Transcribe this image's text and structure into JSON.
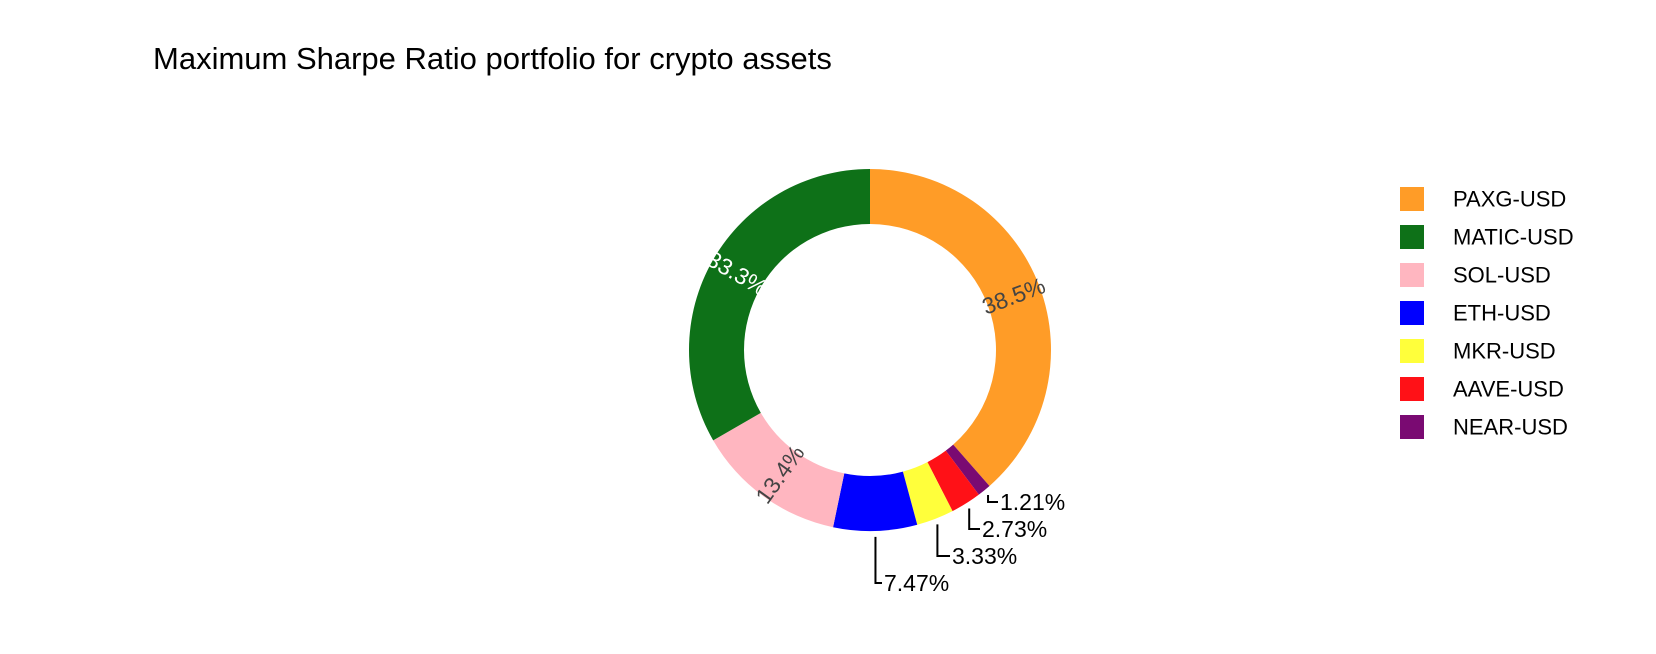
{
  "chart_data": {
    "type": "pie",
    "hole": true,
    "title": "Maximum Sharpe Ratio portfolio for crypto assets",
    "legend_position": "right",
    "slices": [
      {
        "label": "PAXG-USD",
        "value": 38.5,
        "value_label": "38.5%",
        "color": "#ff9c27",
        "label_position": "inside",
        "text_color": "#444444"
      },
      {
        "label": "NEAR-USD",
        "value": 1.21,
        "value_label": "1.21%",
        "color": "#7a0a72",
        "label_position": "outside",
        "text_color": "#000000"
      },
      {
        "label": "AAVE-USD",
        "value": 2.73,
        "value_label": "2.73%",
        "color": "#ff1117",
        "label_position": "outside",
        "text_color": "#000000"
      },
      {
        "label": "MKR-USD",
        "value": 3.33,
        "value_label": "3.33%",
        "color": "#ffff3b",
        "label_position": "outside",
        "text_color": "#000000"
      },
      {
        "label": "ETH-USD",
        "value": 7.47,
        "value_label": "7.47%",
        "color": "#0000ff",
        "label_position": "outside",
        "text_color": "#000000"
      },
      {
        "label": "SOL-USD",
        "value": 13.4,
        "value_label": "13.4%",
        "color": "#ffb6c0",
        "label_position": "inside",
        "text_color": "#444444"
      },
      {
        "label": "MATIC-USD",
        "value": 33.3,
        "value_label": "33.3%",
        "color": "#0e7118",
        "label_position": "inside",
        "text_color": "#ffffff"
      }
    ],
    "legend_order": [
      "PAXG-USD",
      "MATIC-USD",
      "SOL-USD",
      "ETH-USD",
      "MKR-USD",
      "AAVE-USD",
      "NEAR-USD"
    ]
  }
}
